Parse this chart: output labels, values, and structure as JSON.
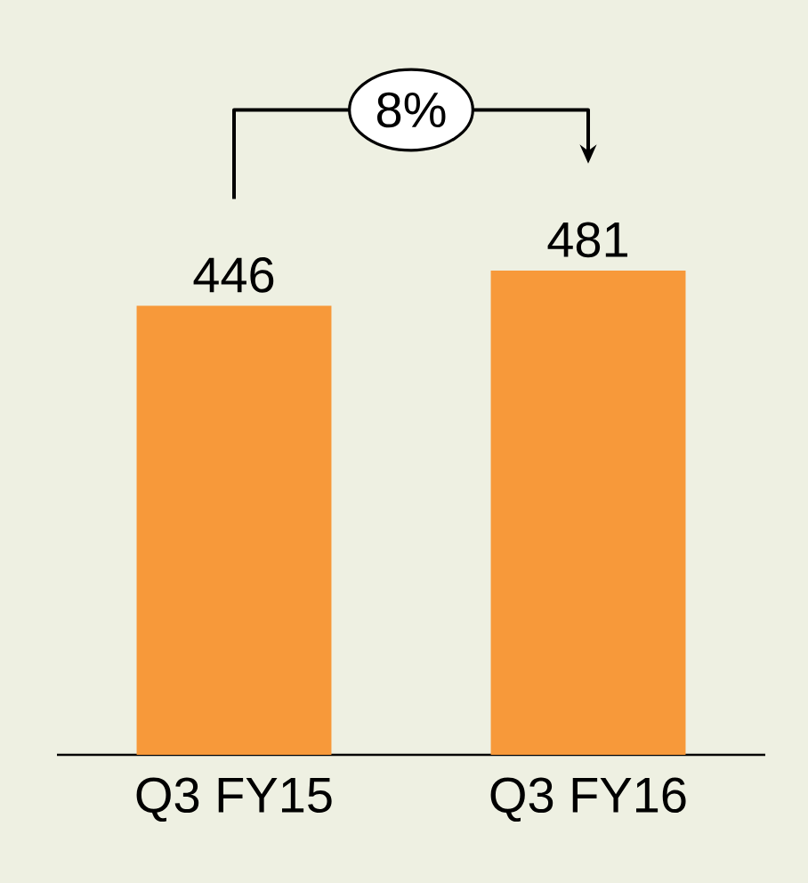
{
  "chart_data": {
    "type": "bar",
    "categories": [
      "Q3 FY15",
      "Q3 FY16"
    ],
    "values": [
      446,
      481
    ],
    "color": "#f7993a",
    "data_labels": true,
    "annotations": [
      "8%"
    ]
  }
}
